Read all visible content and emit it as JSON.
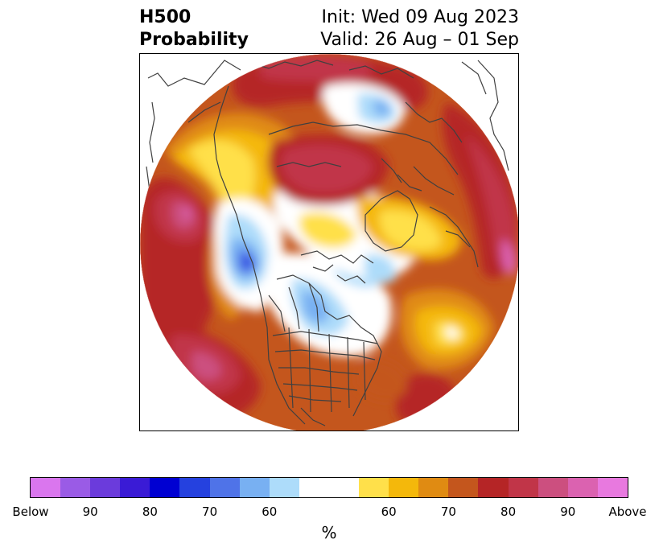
{
  "title": {
    "left_line1": "H500",
    "left_line2": "Probability",
    "init": "Init: Wed 09 Aug 2023",
    "valid": "Valid: 26 Aug – 01 Sep"
  },
  "colorbar": {
    "segments": [
      {
        "color": "#da76ee"
      },
      {
        "color": "#9a5be6"
      },
      {
        "color": "#6b3bdc"
      },
      {
        "color": "#3a1bd6"
      },
      {
        "color": "#0000d2"
      },
      {
        "color": "#2541df"
      },
      {
        "color": "#4f73e8"
      },
      {
        "color": "#78b0f2"
      },
      {
        "color": "#addcfa"
      },
      {
        "color": "#ffffff",
        "wide": true
      },
      {
        "color": "#ffe04a"
      },
      {
        "color": "#f4b80b"
      },
      {
        "color": "#e08b12"
      },
      {
        "color": "#c4561d"
      },
      {
        "color": "#b52526"
      },
      {
        "color": "#c13548"
      },
      {
        "color": "#cc4f7f"
      },
      {
        "color": "#db62b0"
      },
      {
        "color": "#e879df"
      }
    ],
    "ticks": [
      "Below",
      "90",
      "80",
      "70",
      "60",
      "60",
      "70",
      "80",
      "90",
      "Above"
    ],
    "unit": "%"
  },
  "map": {
    "projection": "north-polar-stereographic",
    "field": "500 hPa height anomaly probability",
    "colors": {
      "white": "#ffffff",
      "yellow": "#ffe04a",
      "gold": "#f4b80b",
      "orange": "#e08b12",
      "rust": "#c4561d",
      "red": "#b52526",
      "crimson": "#c13548",
      "rose": "#cc4f7f",
      "pink": "#db62b0",
      "magenta": "#e879df",
      "lightblue": "#addcfa",
      "skyblue": "#78b0f2",
      "blue": "#4f73e8",
      "royal": "#2541df",
      "coast": "#404040"
    }
  }
}
